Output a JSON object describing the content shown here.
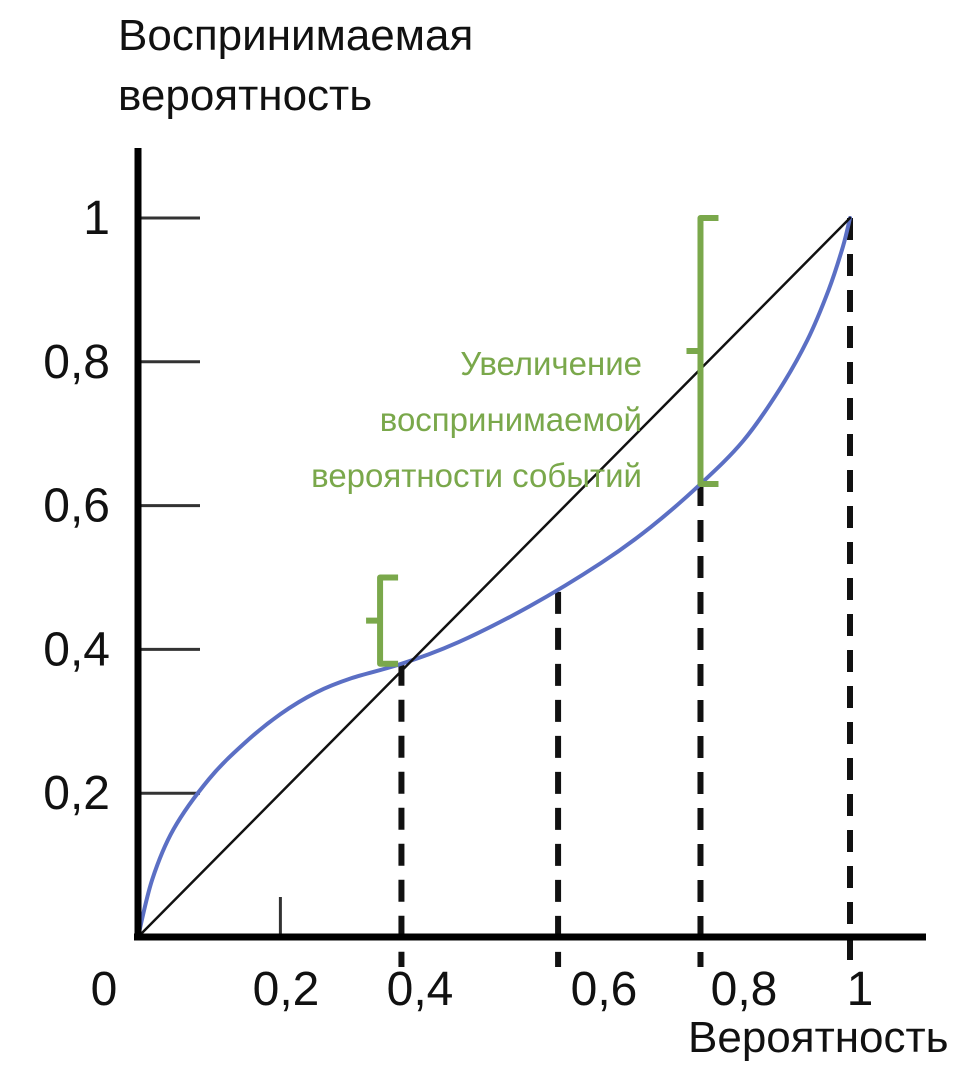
{
  "chart_data": {
    "type": "line",
    "ylabel": [
      "Воспринимаемая",
      "вероятность"
    ],
    "xlabel": "Вероятность",
    "xlim": [
      0,
      1
    ],
    "ylim": [
      0,
      1
    ],
    "x_ticks": [
      "0",
      "0,2",
      "0,4",
      "0,6",
      "0,8",
      "1"
    ],
    "y_ticks": [
      "0,2",
      "0,4",
      "0,6",
      "0,8",
      "1"
    ],
    "series": [
      {
        "color": "#5b6fc4",
        "x": [
          0,
          0.02,
          0.05,
          0.1,
          0.15,
          0.2,
          0.25,
          0.3,
          0.37,
          0.45,
          0.55,
          0.65,
          0.72,
          0.79,
          0.85,
          0.9,
          0.94,
          0.97,
          0.99,
          1.0
        ],
        "y": [
          0,
          0.08,
          0.15,
          0.22,
          0.27,
          0.31,
          0.34,
          0.36,
          0.38,
          0.41,
          0.46,
          0.52,
          0.57,
          0.63,
          0.69,
          0.76,
          0.83,
          0.9,
          0.96,
          1.0
        ]
      },
      {
        "color": "#111111",
        "x": [
          0,
          1
        ],
        "y": [
          0,
          1
        ]
      }
    ],
    "dashed_verticals": [
      {
        "x": 0.37,
        "y_top": 0.38
      },
      {
        "x": 0.59,
        "y_top": 0.48
      },
      {
        "x": 0.79,
        "y_top": 0.63
      },
      {
        "x": 1.0,
        "y_top": 1.0
      }
    ],
    "brackets": [
      {
        "x": 0.34,
        "y_low": 0.38,
        "y_high": 0.5,
        "color": "#7aa84b"
      },
      {
        "x": 0.79,
        "y_low": 0.63,
        "y_high": 1.0,
        "color": "#7aa84b"
      }
    ],
    "annotation": [
      "Увеличение",
      "воспринимаемой",
      "вероятности событий"
    ],
    "annotation_color": "#7aa84b"
  }
}
